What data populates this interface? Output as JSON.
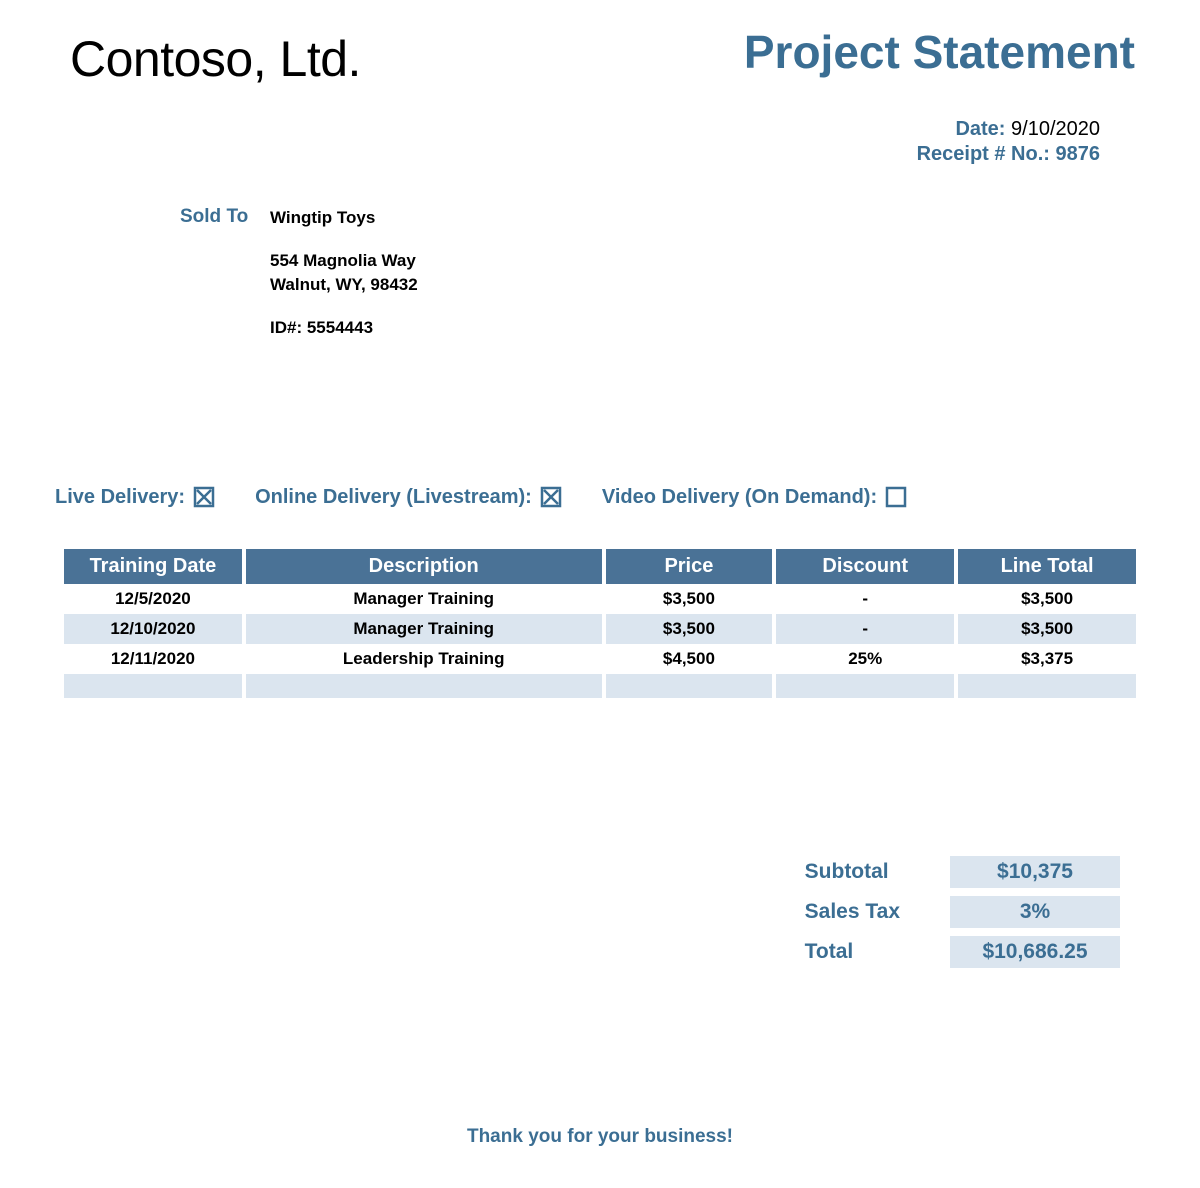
{
  "company": {
    "name": "Contoso, Ltd."
  },
  "document": {
    "title": "Project Statement"
  },
  "meta": {
    "date_label": "Date:",
    "date_value": "9/10/2020",
    "receipt_label": "Receipt # No.:",
    "receipt_value": "9876"
  },
  "sold_to": {
    "label": "Sold To",
    "name": "Wingtip Toys",
    "street": "554 Magnolia Way",
    "city_line": "Walnut, WY, 98432",
    "id_line": "ID#: 5554443"
  },
  "delivery": {
    "live": {
      "label": "Live Delivery:",
      "checked": true
    },
    "online": {
      "label": "Online Delivery (Livestream):",
      "checked": true
    },
    "video": {
      "label": "Video Delivery (On Demand):",
      "checked": false
    }
  },
  "table": {
    "columns": [
      "Training Date",
      "Description",
      "Price",
      "Discount",
      "Line Total"
    ],
    "rows": [
      {
        "date": "12/5/2020",
        "desc": "Manager Training",
        "price": "$3,500",
        "discount": "-",
        "total": "$3,500",
        "alt": false
      },
      {
        "date": "12/10/2020",
        "desc": "Manager Training",
        "price": "$3,500",
        "discount": "-",
        "total": "$3,500",
        "alt": true
      },
      {
        "date": "12/11/2020",
        "desc": "Leadership Training",
        "price": "$4,500",
        "discount": "25%",
        "total": "$3,375",
        "alt": false
      }
    ]
  },
  "totals": {
    "subtotal_label": "Subtotal",
    "subtotal_value": "$10,375",
    "tax_label": "Sales Tax",
    "tax_value": "3%",
    "total_label": "Total",
    "total_value": "$10,686.25"
  },
  "footer": {
    "message": "Thank you for your business!"
  },
  "colors": {
    "brand": "#3b6e93",
    "table_header_bg": "#4a7296",
    "cell_alt_bg": "#dbe5ef"
  }
}
